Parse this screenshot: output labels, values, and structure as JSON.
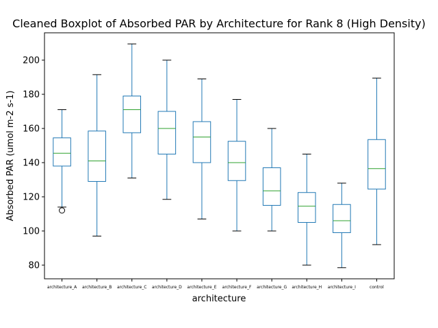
{
  "chart_data": {
    "type": "boxplot",
    "title": "Cleaned Boxplot of Absorbed PAR by Architecture for Rank 8 (High Density)",
    "xlabel": "architecture",
    "ylabel": "Absorbed PAR (umol m-2 s-1)",
    "ylim": [
      72,
      216
    ],
    "yticks": [
      80,
      100,
      120,
      140,
      160,
      180,
      200
    ],
    "grid": false,
    "colors": {
      "box": "#1f77b4",
      "median": "#2ca02c",
      "whisker": "#1f77b4",
      "cap": "#000000",
      "flier": "#000000"
    },
    "boxes": [
      {
        "category": "architecture_A",
        "whislo": 114,
        "q1": 138,
        "med": 145.5,
        "q3": 154.5,
        "whishi": 171,
        "fliers": [
          112
        ]
      },
      {
        "category": "architecture_B",
        "whislo": 97,
        "q1": 129,
        "med": 141,
        "q3": 158.5,
        "whishi": 191.5,
        "fliers": []
      },
      {
        "category": "architecture_C",
        "whislo": 131,
        "q1": 157.5,
        "med": 171,
        "q3": 179,
        "whishi": 209.5,
        "fliers": []
      },
      {
        "category": "architecture_D",
        "whislo": 118.5,
        "q1": 145,
        "med": 160,
        "q3": 170,
        "whishi": 200,
        "fliers": []
      },
      {
        "category": "architecture_E",
        "whislo": 107,
        "q1": 140,
        "med": 155,
        "q3": 164,
        "whishi": 189,
        "fliers": []
      },
      {
        "category": "architecture_F",
        "whislo": 100,
        "q1": 129.5,
        "med": 140,
        "q3": 152.5,
        "whishi": 177,
        "fliers": []
      },
      {
        "category": "architecture_G",
        "whislo": 100,
        "q1": 115,
        "med": 123.5,
        "q3": 137,
        "whishi": 160,
        "fliers": []
      },
      {
        "category": "architecture_H",
        "whislo": 80,
        "q1": 105,
        "med": 114.5,
        "q3": 122.5,
        "whishi": 145,
        "fliers": []
      },
      {
        "category": "architecture_I",
        "whislo": 78.5,
        "q1": 99,
        "med": 106,
        "q3": 115.5,
        "whishi": 128,
        "fliers": []
      },
      {
        "category": "control",
        "whislo": 92,
        "q1": 124.5,
        "med": 136.5,
        "q3": 153.5,
        "whishi": 189.5,
        "fliers": []
      }
    ]
  }
}
